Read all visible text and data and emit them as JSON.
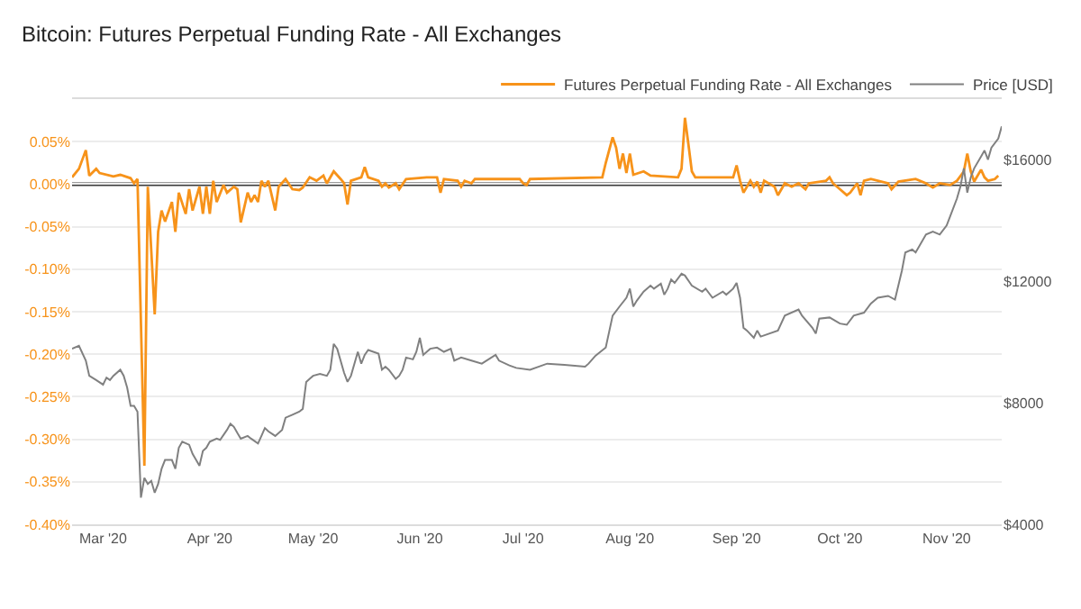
{
  "chart_data": {
    "type": "line",
    "title": "Bitcoin: Futures Perpetual Funding Rate - All Exchanges",
    "xlim": [
      "2020-02-21",
      "2020-11-17"
    ],
    "xticks": [
      {
        "value": "2020-03-01",
        "label": "Mar '20"
      },
      {
        "value": "2020-04-01",
        "label": "Apr '20"
      },
      {
        "value": "2020-05-01",
        "label": "May '20"
      },
      {
        "value": "2020-06-01",
        "label": "Jun '20"
      },
      {
        "value": "2020-07-01",
        "label": "Jul '20"
      },
      {
        "value": "2020-08-01",
        "label": "Aug '20"
      },
      {
        "value": "2020-09-01",
        "label": "Sep '20"
      },
      {
        "value": "2020-10-01",
        "label": "Oct '20"
      },
      {
        "value": "2020-11-01",
        "label": "Nov '20"
      }
    ],
    "ylim": [
      -0.4,
      0.1
    ],
    "yticks": [
      {
        "value": -0.4,
        "label": "-0.40%"
      },
      {
        "value": -0.35,
        "label": "-0.35%"
      },
      {
        "value": -0.3,
        "label": "-0.30%"
      },
      {
        "value": -0.25,
        "label": "-0.25%"
      },
      {
        "value": -0.2,
        "label": "-0.20%"
      },
      {
        "value": -0.15,
        "label": "-0.15%"
      },
      {
        "value": -0.1,
        "label": "-0.10%"
      },
      {
        "value": -0.05,
        "label": "-0.05%"
      },
      {
        "value": 0,
        "label": "0.00%"
      },
      {
        "value": 0.05,
        "label": "0.05%"
      },
      {
        "value": 0.1,
        "label": null
      }
    ],
    "y2lim": [
      4000,
      18000
    ],
    "y2ticks": [
      {
        "value": 4000,
        "label": "$4000"
      },
      {
        "value": 8000,
        "label": "$8000"
      },
      {
        "value": 12000,
        "label": "$12000"
      },
      {
        "value": 16000,
        "label": "$16000"
      }
    ],
    "grid": "y",
    "legend": "top right",
    "ref_lines": [
      {
        "axis": "y",
        "value": 0,
        "color": "#3a3a3a"
      }
    ],
    "series": [
      {
        "name": "Futures Perpetual Funding Rate - All Exchanges",
        "color": "#f7931a",
        "x": [
          "2020-02-21",
          "2020-02-23",
          "2020-02-25",
          "2020-02-26",
          "2020-02-28",
          "2020-02-29",
          "2020-03-04",
          "2020-03-06",
          "2020-03-09",
          "2020-03-10",
          "2020-03-11",
          "2020-03-13",
          "2020-03-14",
          "2020-03-16",
          "2020-03-17",
          "2020-03-18",
          "2020-03-19",
          "2020-03-21",
          "2020-03-22",
          "2020-03-23",
          "2020-03-25",
          "2020-03-26",
          "2020-03-27",
          "2020-03-29",
          "2020-03-30",
          "2020-03-31",
          "2020-04-01",
          "2020-04-02",
          "2020-04-03",
          "2020-04-05",
          "2020-04-06",
          "2020-04-08",
          "2020-04-09",
          "2020-04-10",
          "2020-04-12",
          "2020-04-13",
          "2020-04-14",
          "2020-04-15",
          "2020-04-16",
          "2020-04-17",
          "2020-04-18",
          "2020-04-20",
          "2020-04-21",
          "2020-04-23",
          "2020-04-25",
          "2020-04-27",
          "2020-04-28",
          "2020-04-30",
          "2020-05-02",
          "2020-05-04",
          "2020-05-05",
          "2020-05-07",
          "2020-05-09",
          "2020-05-10",
          "2020-05-11",
          "2020-05-12",
          "2020-05-15",
          "2020-05-16",
          "2020-05-17",
          "2020-05-20",
          "2020-05-21",
          "2020-05-22",
          "2020-05-23",
          "2020-05-25",
          "2020-05-26",
          "2020-05-28",
          "2020-06-03",
          "2020-06-06",
          "2020-06-07",
          "2020-06-08",
          "2020-06-12",
          "2020-06-13",
          "2020-06-14",
          "2020-06-16",
          "2020-06-17",
          "2020-06-30",
          "2020-07-01",
          "2020-07-02",
          "2020-07-03",
          "2020-07-24",
          "2020-07-25",
          "2020-07-27",
          "2020-07-28",
          "2020-07-29",
          "2020-07-30",
          "2020-07-31",
          "2020-08-01",
          "2020-08-02",
          "2020-08-05",
          "2020-08-07",
          "2020-08-15",
          "2020-08-16",
          "2020-08-17",
          "2020-08-18",
          "2020-08-19",
          "2020-08-20",
          "2020-08-31",
          "2020-09-01",
          "2020-09-02",
          "2020-09-03",
          "2020-09-05",
          "2020-09-06",
          "2020-09-07",
          "2020-09-08",
          "2020-09-09",
          "2020-09-12",
          "2020-09-13",
          "2020-09-15",
          "2020-09-17",
          "2020-09-19",
          "2020-09-21",
          "2020-09-22",
          "2020-09-27",
          "2020-09-28",
          "2020-09-29",
          "2020-10-01",
          "2020-10-03",
          "2020-10-04",
          "2020-10-06",
          "2020-10-07",
          "2020-10-08",
          "2020-10-10",
          "2020-10-15",
          "2020-10-16",
          "2020-10-18",
          "2020-10-23",
          "2020-10-26",
          "2020-10-28",
          "2020-10-30",
          "2020-11-02",
          "2020-11-04",
          "2020-11-06",
          "2020-11-07",
          "2020-11-08",
          "2020-11-09",
          "2020-11-11",
          "2020-11-12",
          "2020-11-13",
          "2020-11-15",
          "2020-11-16"
        ],
        "values": [
          0.008,
          0.018,
          0.04,
          0.01,
          0.018,
          0.013,
          0.009,
          0.011,
          0.007,
          0.001,
          0.006,
          -0.331,
          -0.003,
          -0.153,
          -0.056,
          -0.031,
          -0.044,
          -0.021,
          -0.056,
          -0.01,
          -0.035,
          -0.006,
          -0.031,
          -0.003,
          -0.035,
          -0.003,
          -0.035,
          0.004,
          -0.021,
          -0.001,
          -0.01,
          -0.003,
          -0.006,
          -0.045,
          -0.01,
          -0.021,
          -0.013,
          -0.021,
          0.004,
          -0.003,
          0.004,
          -0.031,
          -0.003,
          0.006,
          -0.006,
          -0.007,
          -0.004,
          0.008,
          0.004,
          0.01,
          0.001,
          0.015,
          0.006,
          0.001,
          -0.024,
          0.004,
          0.008,
          0.02,
          0.008,
          0.004,
          -0.003,
          0.001,
          -0.004,
          0.001,
          -0.006,
          0.006,
          0.008,
          0.008,
          -0.01,
          0.006,
          0.004,
          -0.003,
          0.004,
          0.001,
          0.006,
          0.006,
          0.001,
          -0.001,
          0.006,
          0.008,
          0.025,
          0.055,
          0.043,
          0.018,
          0.036,
          0.013,
          0.036,
          0.011,
          0.015,
          0.01,
          0.008,
          0.018,
          0.078,
          0.047,
          0.015,
          0.008,
          0.008,
          0.022,
          0.004,
          -0.01,
          0.004,
          -0.003,
          0.003,
          -0.01,
          0.004,
          -0.003,
          -0.013,
          0.001,
          -0.003,
          0.001,
          -0.006,
          0.001,
          0.004,
          0.008,
          0.001,
          -0.006,
          -0.013,
          -0.01,
          0.001,
          -0.013,
          0.004,
          0.006,
          0.001,
          -0.006,
          0.003,
          0.006,
          0.001,
          -0.004,
          0.001,
          -0.001,
          0.004,
          0.015,
          0.036,
          0.015,
          0.003,
          0.017,
          0.008,
          0.004,
          0.006,
          0.01
        ]
      },
      {
        "name": "Price [USD]",
        "color": "#808080",
        "axis": "y2",
        "x": [
          "2020-02-21",
          "2020-02-23",
          "2020-02-25",
          "2020-02-26",
          "2020-02-28",
          "2020-03-01",
          "2020-03-02",
          "2020-03-03",
          "2020-03-04",
          "2020-03-06",
          "2020-03-07",
          "2020-03-08",
          "2020-03-09",
          "2020-03-10",
          "2020-03-11",
          "2020-03-12",
          "2020-03-13",
          "2020-03-14",
          "2020-03-15",
          "2020-03-16",
          "2020-03-17",
          "2020-03-18",
          "2020-03-19",
          "2020-03-21",
          "2020-03-22",
          "2020-03-23",
          "2020-03-24",
          "2020-03-26",
          "2020-03-27",
          "2020-03-29",
          "2020-03-30",
          "2020-03-31",
          "2020-04-01",
          "2020-04-03",
          "2020-04-04",
          "2020-04-06",
          "2020-04-07",
          "2020-04-08",
          "2020-04-09",
          "2020-04-10",
          "2020-04-12",
          "2020-04-13",
          "2020-04-15",
          "2020-04-16",
          "2020-04-17",
          "2020-04-18",
          "2020-04-20",
          "2020-04-22",
          "2020-04-23",
          "2020-04-25",
          "2020-04-27",
          "2020-04-28",
          "2020-04-29",
          "2020-04-30",
          "2020-05-01",
          "2020-05-03",
          "2020-05-05",
          "2020-05-06",
          "2020-05-07",
          "2020-05-08",
          "2020-05-10",
          "2020-05-11",
          "2020-05-12",
          "2020-05-14",
          "2020-05-15",
          "2020-05-16",
          "2020-05-17",
          "2020-05-20",
          "2020-05-21",
          "2020-05-22",
          "2020-05-23",
          "2020-05-25",
          "2020-05-26",
          "2020-05-27",
          "2020-05-28",
          "2020-05-30",
          "2020-05-31",
          "2020-06-01",
          "2020-06-02",
          "2020-06-04",
          "2020-06-06",
          "2020-06-08",
          "2020-06-10",
          "2020-06-11",
          "2020-06-13",
          "2020-06-16",
          "2020-06-19",
          "2020-06-23",
          "2020-06-24",
          "2020-06-27",
          "2020-06-29",
          "2020-07-03",
          "2020-07-08",
          "2020-07-13",
          "2020-07-19",
          "2020-07-20",
          "2020-07-22",
          "2020-07-25",
          "2020-07-27",
          "2020-07-29",
          "2020-07-31",
          "2020-08-01",
          "2020-08-02",
          "2020-08-03",
          "2020-08-05",
          "2020-08-07",
          "2020-08-08",
          "2020-08-10",
          "2020-08-11",
          "2020-08-12",
          "2020-08-13",
          "2020-08-14",
          "2020-08-16",
          "2020-08-17",
          "2020-08-19",
          "2020-08-22",
          "2020-08-23",
          "2020-08-25",
          "2020-08-28",
          "2020-08-29",
          "2020-08-31",
          "2020-09-01",
          "2020-09-02",
          "2020-09-03",
          "2020-09-04",
          "2020-09-06",
          "2020-09-07",
          "2020-09-08",
          "2020-09-13",
          "2020-09-15",
          "2020-09-19",
          "2020-09-20",
          "2020-09-23",
          "2020-09-24",
          "2020-09-25",
          "2020-09-28",
          "2020-10-01",
          "2020-10-03",
          "2020-10-05",
          "2020-10-08",
          "2020-10-10",
          "2020-10-12",
          "2020-10-15",
          "2020-10-17",
          "2020-10-19",
          "2020-10-20",
          "2020-10-22",
          "2020-10-23",
          "2020-10-26",
          "2020-10-28",
          "2020-10-30",
          "2020-11-01",
          "2020-11-02",
          "2020-11-04",
          "2020-11-05",
          "2020-11-06",
          "2020-11-07",
          "2020-11-08",
          "2020-11-09",
          "2020-11-11",
          "2020-11-12",
          "2020-11-13",
          "2020-11-14",
          "2020-11-16",
          "2020-11-17"
        ],
        "values": [
          9780,
          9880,
          9390,
          8890,
          8750,
          8600,
          8830,
          8750,
          8890,
          9090,
          8890,
          8500,
          7900,
          7900,
          7710,
          4880,
          5530,
          5330,
          5430,
          5040,
          5330,
          5830,
          6120,
          6120,
          5830,
          6520,
          6720,
          6620,
          6320,
          5930,
          6420,
          6520,
          6720,
          6820,
          6780,
          7110,
          7310,
          7210,
          7010,
          6820,
          6910,
          6820,
          6660,
          6910,
          7170,
          7060,
          6910,
          7110,
          7510,
          7610,
          7710,
          7800,
          8690,
          8790,
          8890,
          8950,
          8890,
          9090,
          9940,
          9780,
          8990,
          8690,
          8890,
          9680,
          9290,
          9580,
          9740,
          9620,
          9090,
          9190,
          9090,
          8790,
          8890,
          9090,
          9490,
          9430,
          9680,
          10140,
          9580,
          9780,
          9820,
          9680,
          9780,
          9390,
          9490,
          9390,
          9290,
          9580,
          9390,
          9230,
          9150,
          9090,
          9290,
          9250,
          9190,
          9290,
          9550,
          9820,
          10870,
          11170,
          11460,
          11760,
          11170,
          11360,
          11660,
          11860,
          11760,
          11920,
          11560,
          11760,
          12060,
          11950,
          12250,
          12190,
          11860,
          11660,
          11760,
          11460,
          11660,
          11560,
          11760,
          11950,
          11460,
          10470,
          10380,
          10140,
          10380,
          10180,
          10380,
          10870,
          11070,
          10870,
          10470,
          10280,
          10770,
          10810,
          10610,
          10570,
          10870,
          10970,
          11270,
          11460,
          11520,
          11400,
          12350,
          12950,
          13050,
          12950,
          13540,
          13640,
          13540,
          13840,
          14130,
          14730,
          15120,
          15720,
          14920,
          15420,
          15720,
          16110,
          16310,
          16010,
          16400,
          16700,
          17100
        ]
      }
    ]
  }
}
